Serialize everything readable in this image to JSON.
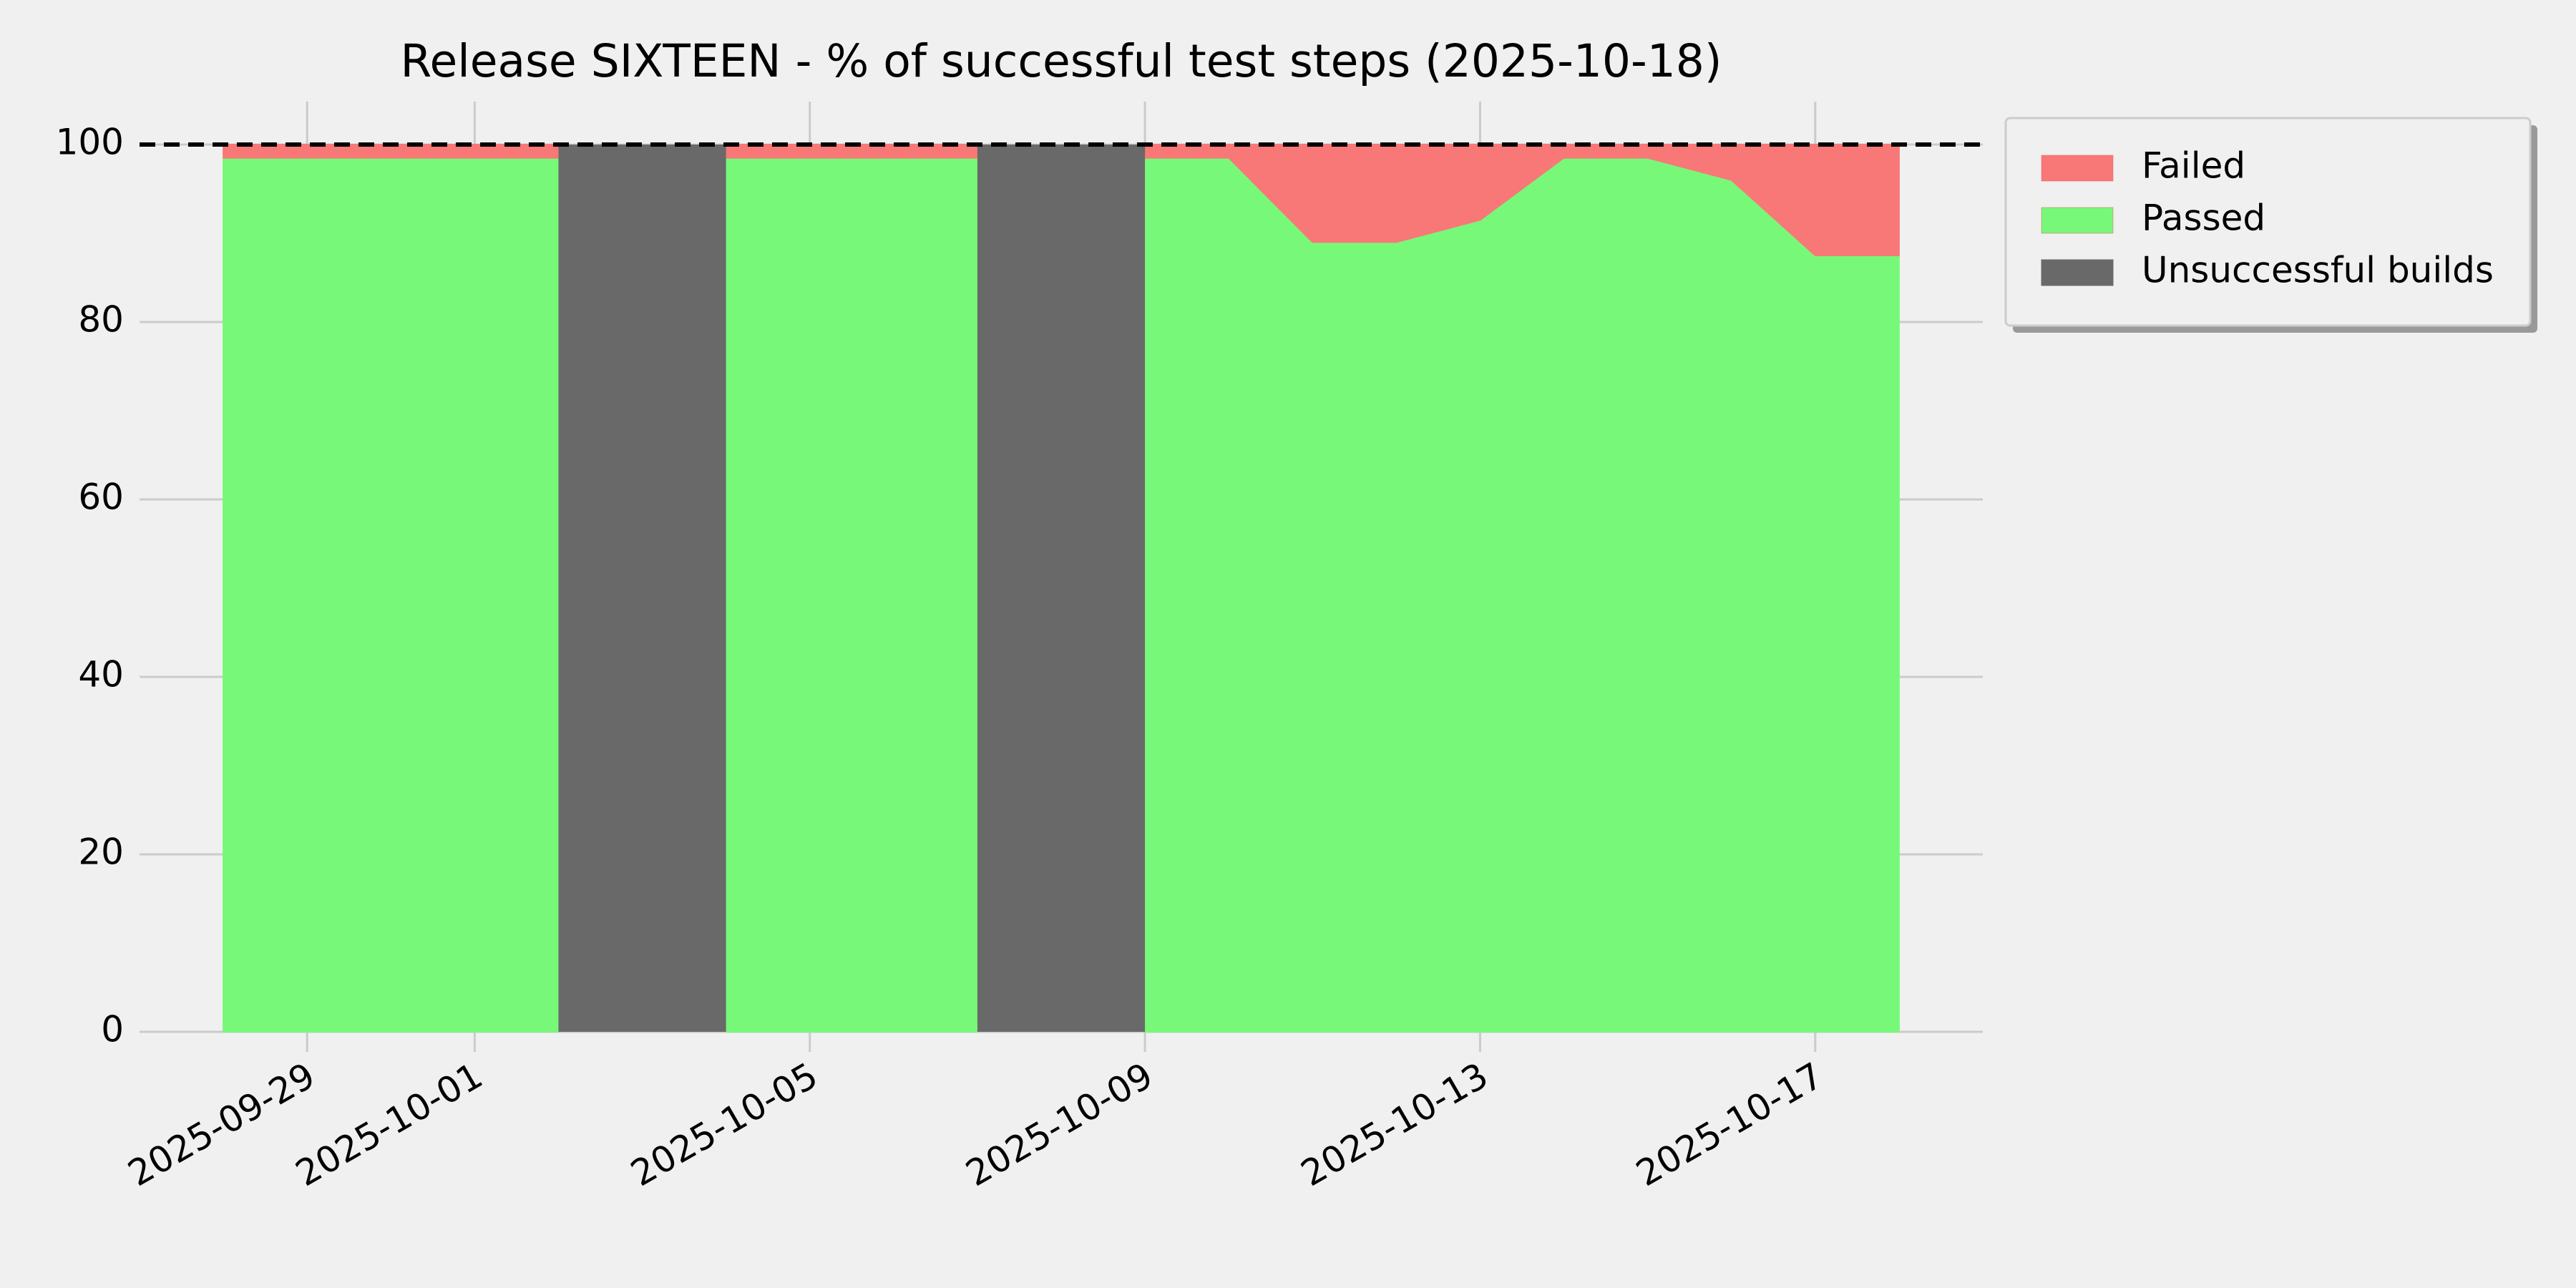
{
  "chart_data": {
    "type": "stackedarea",
    "title": "Release SIXTEEN - % of successful test steps (2025-10-18)",
    "x": [
      "2025-09-28",
      "2025-09-29",
      "2025-09-30",
      "2025-10-01",
      "2025-10-02",
      "2025-10-03",
      "2025-10-04",
      "2025-10-05",
      "2025-10-06",
      "2025-10-07",
      "2025-10-08",
      "2025-10-09",
      "2025-10-10",
      "2025-10-11",
      "2025-10-12",
      "2025-10-13",
      "2025-10-14",
      "2025-10-15",
      "2025-10-16",
      "2025-10-17",
      "2025-10-18"
    ],
    "series": [
      {
        "name": "Failed",
        "color": "#f87878",
        "values": [
          1.5,
          1.5,
          1.5,
          1.5,
          1.5,
          null,
          1.5,
          1.5,
          1.5,
          1.5,
          null,
          1.5,
          1.5,
          11,
          11,
          8.5,
          1.5,
          1.5,
          4,
          12.5,
          12.5
        ]
      },
      {
        "name": "Passed",
        "color": "#78f878",
        "values": [
          98.5,
          98.5,
          98.5,
          98.5,
          98.5,
          null,
          98.5,
          98.5,
          98.5,
          98.5,
          null,
          98.5,
          98.5,
          89,
          89,
          91.5,
          98.5,
          98.5,
          96,
          87.5,
          87.5
        ]
      },
      {
        "name": "Unsuccessful builds",
        "color": "#696969",
        "type": "span",
        "values": [
          null,
          null,
          null,
          null,
          null,
          100,
          null,
          null,
          null,
          null,
          100,
          null,
          null,
          null,
          null,
          null,
          null,
          null,
          null,
          null,
          null
        ]
      }
    ],
    "xlim": [
      "2025-09-27",
      "2025-10-19"
    ],
    "xticks": [
      "2025-09-29",
      "2025-10-01",
      "2025-10-05",
      "2025-10-09",
      "2025-10-13",
      "2025-10-17"
    ],
    "ylim": [
      0,
      100
    ],
    "yticks": [
      0,
      20,
      40,
      60,
      80,
      100
    ],
    "reference_line": 100,
    "grid": true,
    "legend": "outside upper right"
  }
}
